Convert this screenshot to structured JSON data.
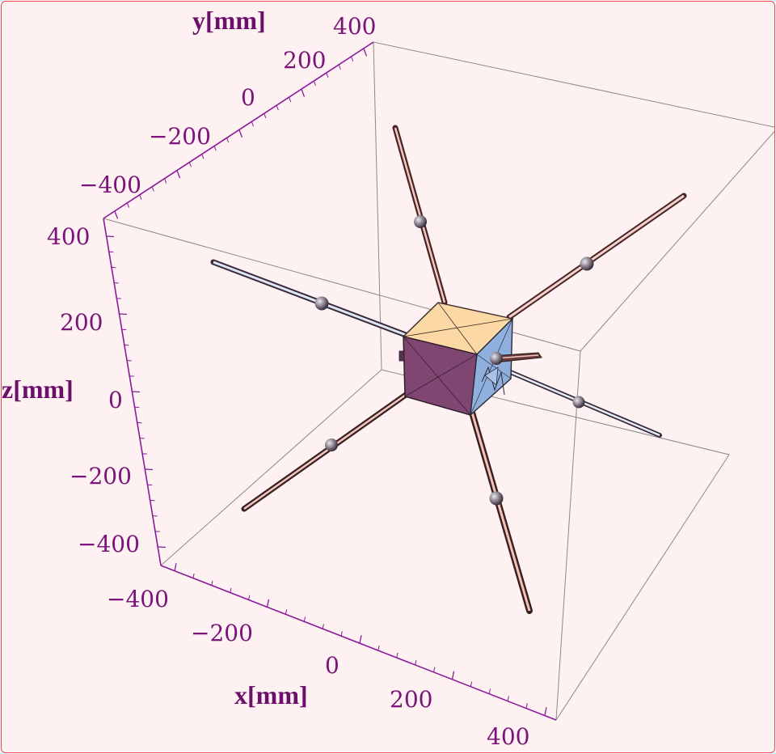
{
  "axes": {
    "x": {
      "label": "x[mm]",
      "ticks": [
        "−400",
        "−200",
        "0",
        "200",
        "400"
      ]
    },
    "y": {
      "label": "y[mm]",
      "ticks": [
        "−400",
        "−200",
        "0",
        "200",
        "400"
      ]
    },
    "z": {
      "label": "z[mm]",
      "ticks": [
        "−400",
        "−200",
        "0",
        "200",
        "400"
      ]
    }
  },
  "colors": {
    "background": "#fdf1f1",
    "frame": "#e8474d",
    "axis": "#8b1a9b",
    "cube_top": "#fcd9a4",
    "cube_front": "#7e4670",
    "cube_side": "#8fb0dc"
  },
  "object": {
    "type": "spacecraft-cube-with-six-booms"
  }
}
